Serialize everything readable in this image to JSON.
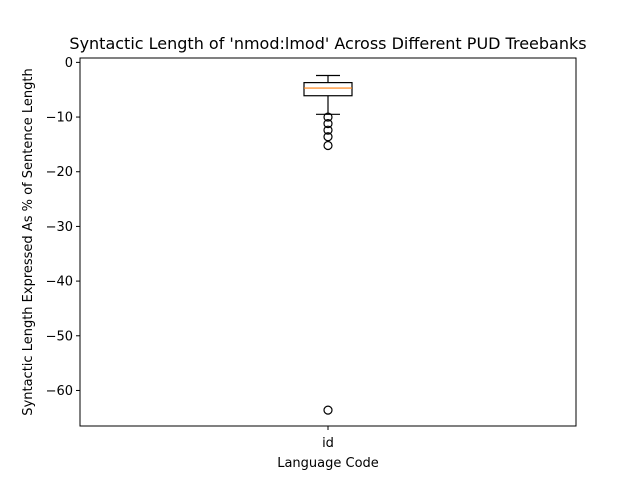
{
  "chart_data": {
    "type": "boxplot",
    "title": "Syntactic Length of 'nmod:lmod' Across Different PUD Treebanks",
    "xlabel": "Language Code",
    "ylabel": "Syntactic Length Expressed As % of Sentence Length",
    "ylim": [
      -66.5,
      0.8
    ],
    "yticks": [
      0,
      -10,
      -20,
      -30,
      -40,
      -50,
      -60
    ],
    "grid": false,
    "categories": [
      "id"
    ],
    "boxes": [
      {
        "category": "id",
        "whisker_high": -2.4,
        "q3": -3.7,
        "median": -4.7,
        "q1": -6.1,
        "whisker_low": -9.5,
        "outliers": [
          -10.0,
          -11.2,
          -12.4,
          -13.6,
          -15.2,
          -63.6
        ]
      }
    ],
    "colors": {
      "box": "#000000",
      "median": "#ff7f0e",
      "whisker": "#000000",
      "flier": "#000000"
    }
  }
}
